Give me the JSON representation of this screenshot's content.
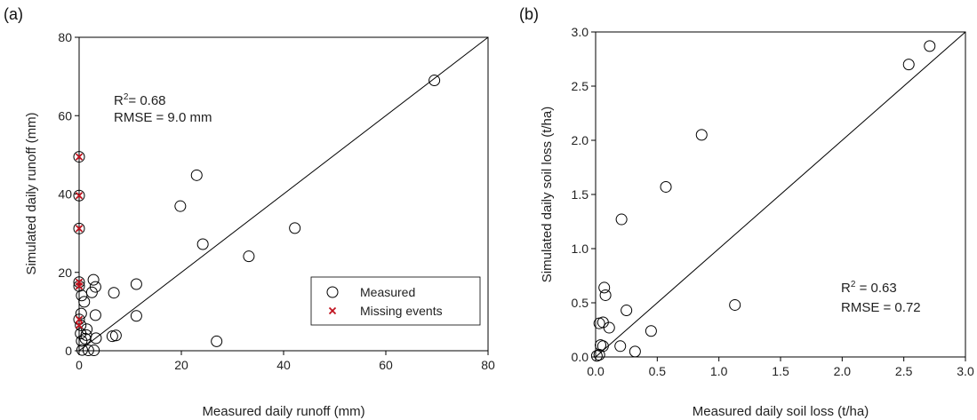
{
  "chart_data": [
    {
      "type": "scatter",
      "panel_label": "(a)",
      "xlabel": "Measured daily runoff (mm)",
      "ylabel": "Simulated daily runoff (mm)",
      "xlim": [
        0,
        80
      ],
      "ylim": [
        0,
        80
      ],
      "xticks": [
        "0",
        "20",
        "40",
        "60",
        "80"
      ],
      "yticks": [
        "0",
        "20",
        "40",
        "60",
        "80"
      ],
      "annotation": {
        "r2": "R²= 0.68",
        "r2_base": "R",
        "r2_sup": "2",
        "r2_rest": "= 0.68",
        "rmse": "RMSE = 9.0 mm"
      },
      "one_to_one_line": true,
      "legend_position": "bottom-right",
      "series": [
        {
          "name": "Measured",
          "marker": "open-circle",
          "x": [
            69.5,
            23.0,
            19.8,
            24.2,
            42.2,
            33.2,
            11.2,
            26.9,
            11.2,
            6.8,
            7.2,
            6.5,
            2.8,
            3.2,
            2.5,
            3.2,
            1.0,
            1.5,
            0.5,
            0.3,
            1.2,
            0.6,
            1.8,
            0.0,
            0.0,
            0.0,
            0.0,
            0.5,
            3.3,
            2.9,
            0.0,
            0.0,
            0.3,
            0.4,
            1.4
          ],
          "y": [
            69.0,
            44.8,
            36.9,
            27.2,
            31.3,
            24.1,
            17.0,
            2.4,
            8.9,
            14.8,
            3.9,
            3.7,
            18.1,
            16.3,
            14.9,
            9.1,
            12.5,
            5.5,
            2.5,
            4.4,
            3.1,
            0.2,
            0.1,
            49.5,
            39.6,
            31.2,
            17.5,
            14.1,
            3.2,
            0.1,
            16.5,
            8.0,
            6.5,
            9.5,
            4.0
          ]
        },
        {
          "name": "Missing events",
          "marker": "x",
          "color": "#c0121e",
          "x": [
            0.0,
            0.0,
            0.0,
            0.0,
            0.0,
            0.0,
            0.0
          ],
          "y": [
            49.5,
            39.6,
            31.2,
            17.5,
            16.5,
            8.0,
            6.5
          ]
        }
      ]
    },
    {
      "type": "scatter",
      "panel_label": "(b)",
      "xlabel": "Measured daily soil loss (t/ha)",
      "ylabel": "Simulated daily soil loss (t/ha)",
      "xlim": [
        0,
        3
      ],
      "ylim": [
        0,
        3
      ],
      "xticks": [
        "0.0",
        "0.5",
        "1.0",
        "1.5",
        "2.0",
        "2.5",
        "3.0"
      ],
      "yticks": [
        "0.0",
        "0.5",
        "1.0",
        "1.5",
        "2.0",
        "2.5",
        "3.0"
      ],
      "annotation": {
        "r2": "R² = 0.63",
        "r2_base": "R",
        "r2_sup": "2",
        "r2_rest": " = 0.63",
        "rmse": "RMSE = 0.72"
      },
      "one_to_one_line": true,
      "series": [
        {
          "marker": "open-circle",
          "x": [
            2.71,
            2.54,
            0.86,
            0.57,
            0.21,
            1.13,
            0.25,
            0.45,
            0.07,
            0.08,
            0.11,
            0.03,
            0.06,
            0.04,
            0.06,
            0.2,
            0.32,
            0.03,
            0.01
          ],
          "y": [
            2.87,
            2.7,
            2.05,
            1.57,
            1.27,
            0.48,
            0.43,
            0.24,
            0.64,
            0.57,
            0.27,
            0.31,
            0.32,
            0.11,
            0.1,
            0.1,
            0.05,
            0.02,
            0.01
          ]
        }
      ]
    }
  ]
}
